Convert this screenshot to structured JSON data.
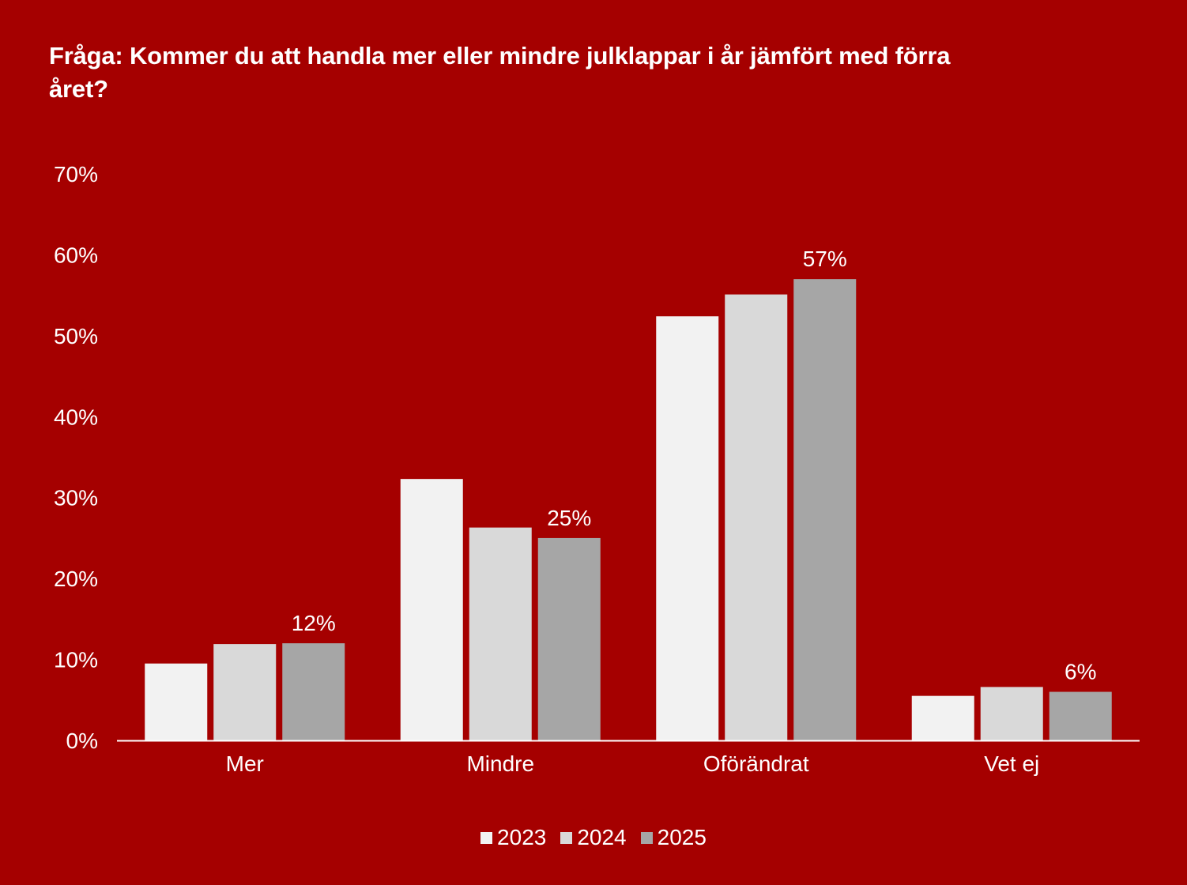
{
  "chart_data": {
    "type": "bar",
    "title": "Fråga: Kommer du att handla mer eller mindre julklappar i år jämfört med förra året?",
    "categories": [
      "Mer",
      "Mindre",
      "Oförändrat",
      "Vet ej"
    ],
    "series": [
      {
        "name": "2023",
        "color": "#f2f2f2",
        "values": [
          9.5,
          32.3,
          52.4,
          5.5
        ]
      },
      {
        "name": "2024",
        "color": "#d9d9d9",
        "values": [
          11.9,
          26.3,
          55.1,
          6.6
        ]
      },
      {
        "name": "2025",
        "color": "#a6a6a6",
        "values": [
          12,
          25,
          57,
          6
        ]
      }
    ],
    "data_labels": {
      "series": "2025",
      "labels": [
        "12%",
        "25%",
        "57%",
        "6%"
      ]
    },
    "y_ticks": [
      "0%",
      "10%",
      "20%",
      "30%",
      "40%",
      "50%",
      "60%",
      "70%"
    ],
    "ylim": [
      0,
      70
    ],
    "y_unit": "%",
    "xlabel": "",
    "ylabel": "",
    "grid": false,
    "legend_position": "bottom-center"
  },
  "colors": {
    "background": "#a50000",
    "text": "#ffffff",
    "axis_line": "#ffffff"
  }
}
